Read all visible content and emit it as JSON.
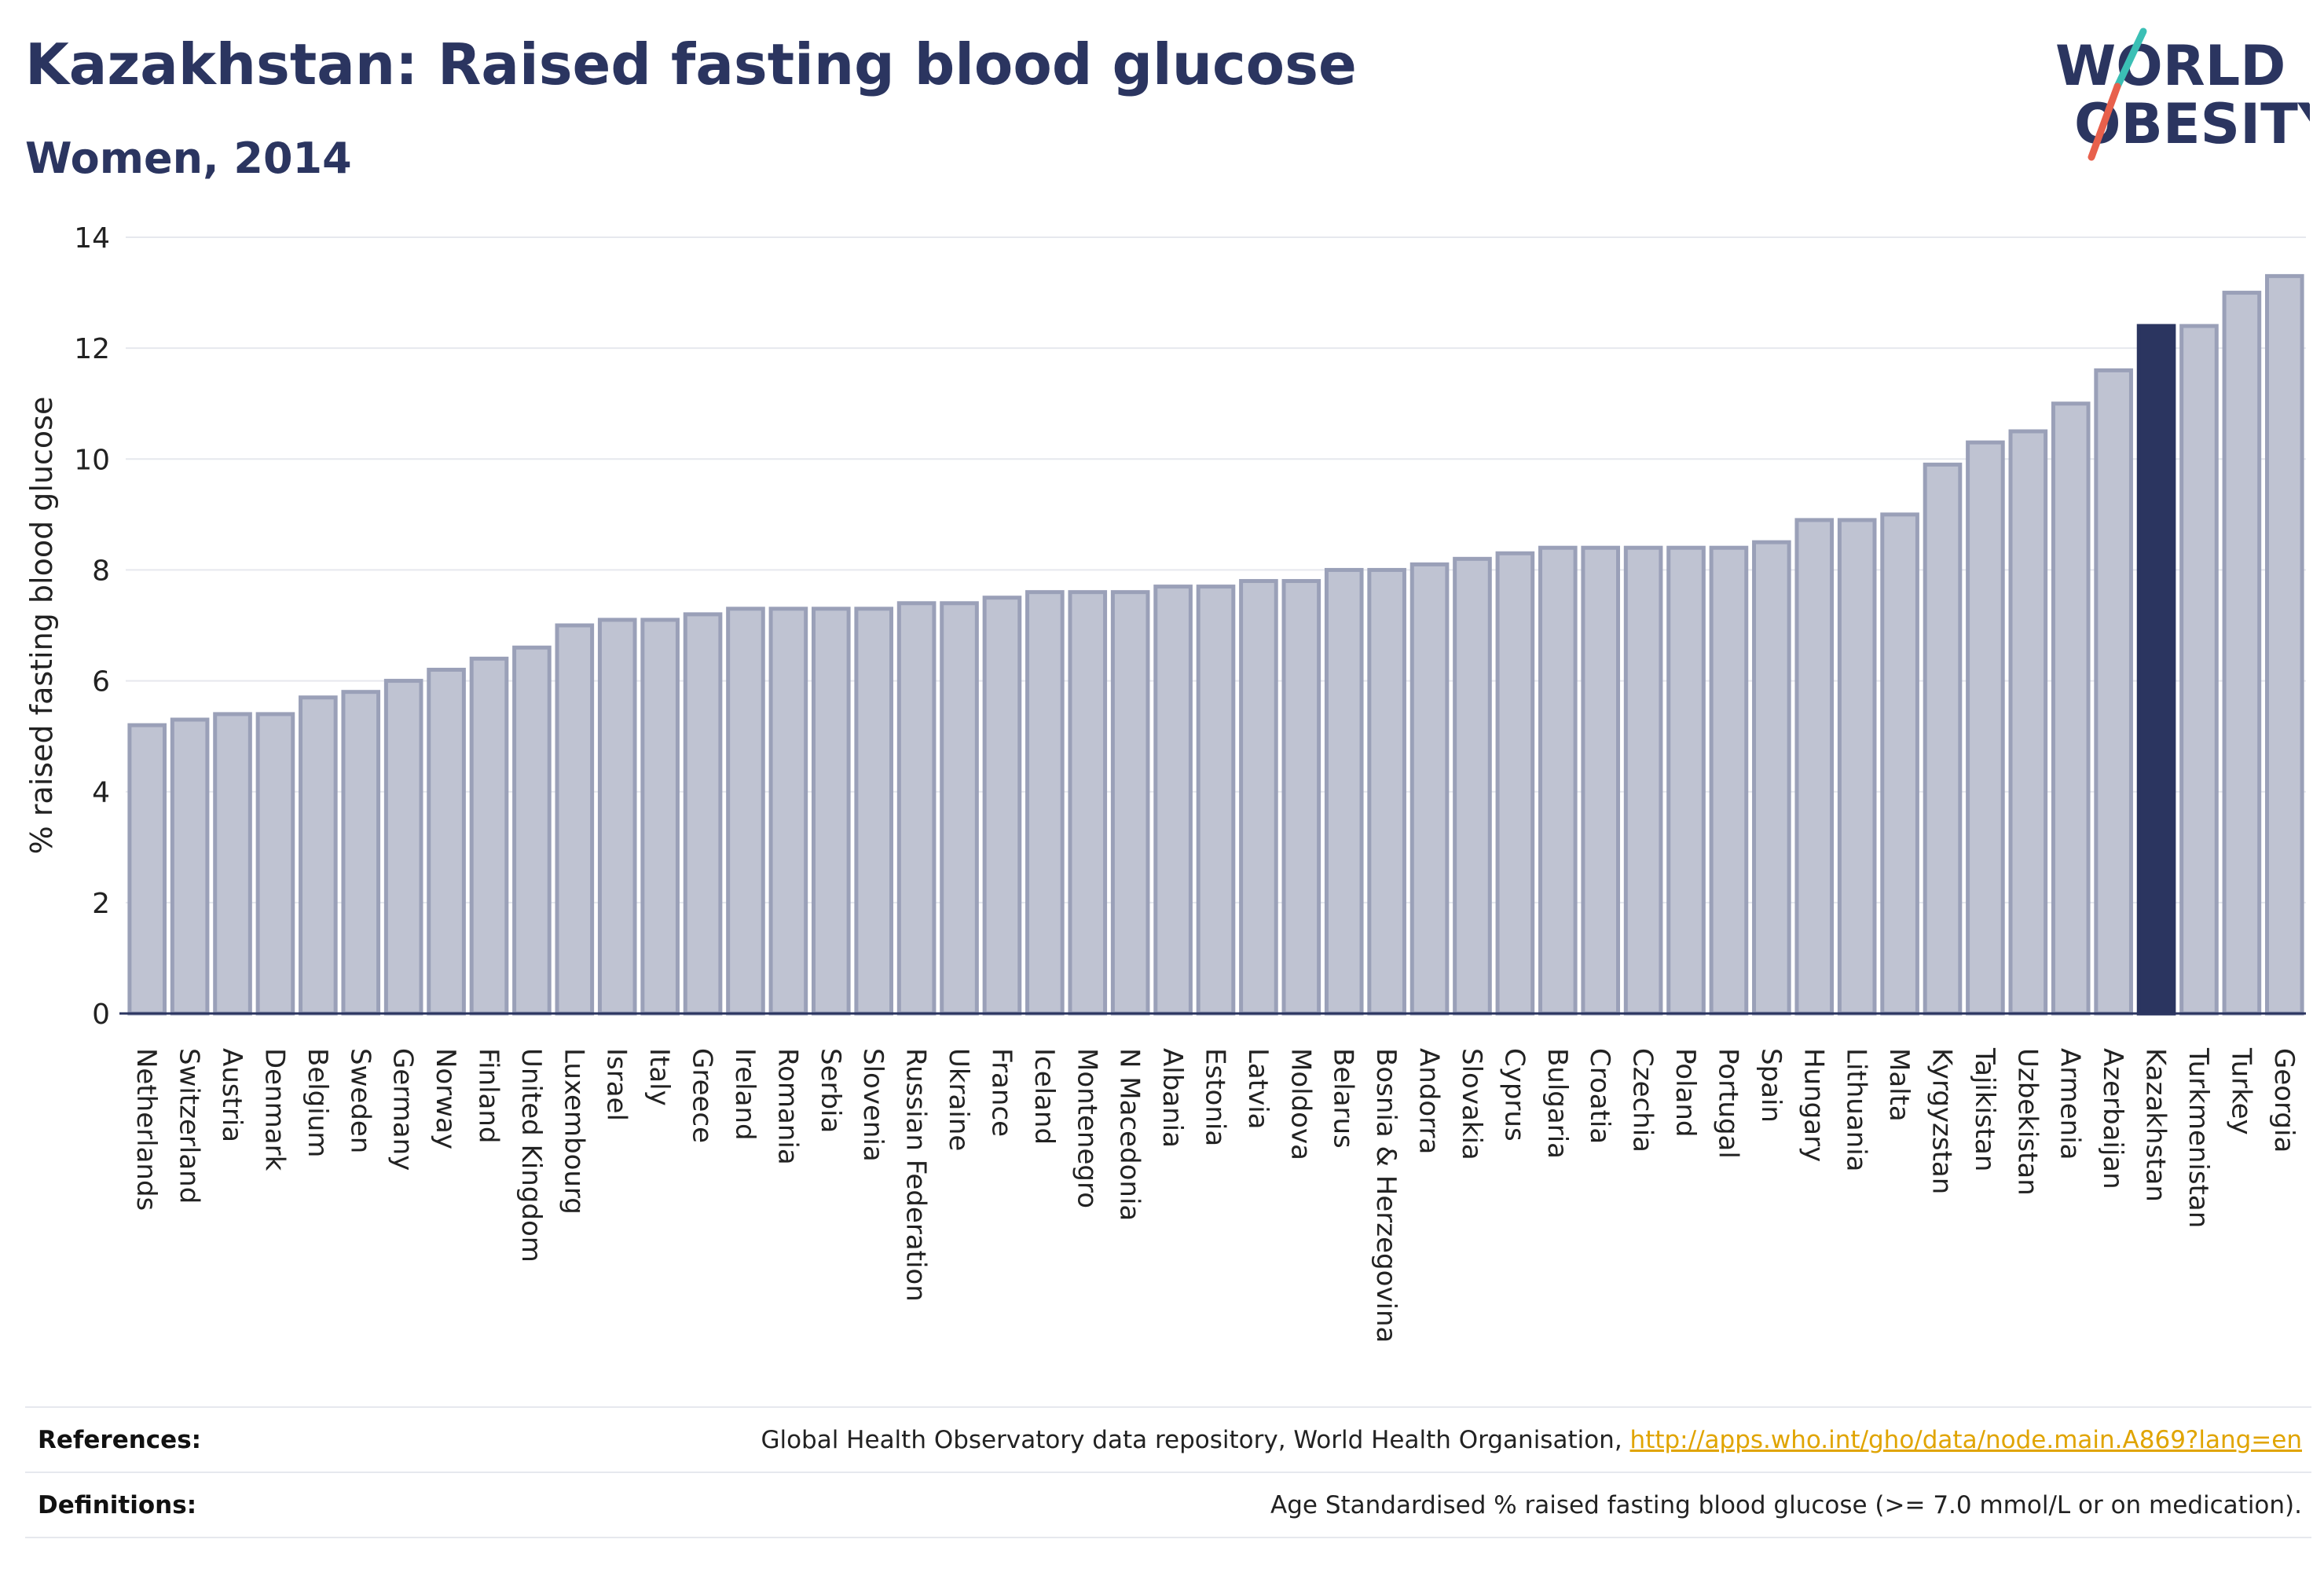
{
  "header": {
    "title": "Kazakhstan: Raised fasting blood glucose",
    "subtitle": "Women, 2014"
  },
  "logo": {
    "text": "WORLD OBESITY",
    "line1": "WORLD",
    "line2": "OBESITY",
    "colors": {
      "text": "#2b3560",
      "slash_teal": "#3bbfb5",
      "slash_red": "#e8604c"
    }
  },
  "colors": {
    "bar_fill": "#bfc3d2",
    "bar_stroke": "#9aa0b8",
    "highlight": "#2b3560",
    "grid": "#e6e8ee",
    "axis": "#2b3560",
    "text": "#222222"
  },
  "chart_data": {
    "type": "bar",
    "title": "Kazakhstan: Raised fasting blood glucose",
    "subtitle": "Women, 2014",
    "xlabel": "",
    "ylabel": "% raised fasting blood glucose",
    "ylim": [
      0,
      14
    ],
    "yticks": [
      0,
      2,
      4,
      6,
      8,
      10,
      12,
      14
    ],
    "grid": true,
    "highlight": "Kazakhstan",
    "categories": [
      "Netherlands",
      "Switzerland",
      "Austria",
      "Denmark",
      "Belgium",
      "Sweden",
      "Germany",
      "Norway",
      "Finland",
      "United Kingdom",
      "Luxembourg",
      "Israel",
      "Italy",
      "Greece",
      "Ireland",
      "Romania",
      "Serbia",
      "Slovenia",
      "Russian Federation",
      "Ukraine",
      "France",
      "Iceland",
      "Montenegro",
      "N Macedonia",
      "Albania",
      "Estonia",
      "Latvia",
      "Moldova",
      "Belarus",
      "Bosnia & Herzegovina",
      "Andorra",
      "Slovakia",
      "Cyprus",
      "Bulgaria",
      "Croatia",
      "Czechia",
      "Poland",
      "Portugal",
      "Spain",
      "Hungary",
      "Lithuania",
      "Malta",
      "Kyrgyzstan",
      "Tajikistan",
      "Uzbekistan",
      "Armenia",
      "Azerbaijan",
      "Kazakhstan",
      "Turkmenistan",
      "Turkey",
      "Georgia"
    ],
    "values": [
      5.2,
      5.3,
      5.4,
      5.4,
      5.7,
      5.8,
      6.0,
      6.2,
      6.4,
      6.6,
      7.0,
      7.1,
      7.1,
      7.2,
      7.3,
      7.3,
      7.3,
      7.3,
      7.4,
      7.4,
      7.5,
      7.6,
      7.6,
      7.6,
      7.7,
      7.7,
      7.8,
      7.8,
      8.0,
      8.0,
      8.1,
      8.2,
      8.3,
      8.4,
      8.4,
      8.4,
      8.4,
      8.4,
      8.5,
      8.9,
      8.9,
      9.0,
      9.9,
      10.3,
      10.5,
      11.0,
      11.6,
      12.4,
      12.4,
      13.0,
      13.3
    ]
  },
  "footer": {
    "references_label": "References:",
    "references_text": "Global Health Observatory data repository, World Health Organisation, ",
    "references_link": "http://apps.who.int/gho/data/node.main.A869?lang=en",
    "definitions_label": "Definitions:",
    "definitions_text": "Age Standardised % raised fasting blood glucose (>= 7.0 mmol/L or on medication)."
  }
}
